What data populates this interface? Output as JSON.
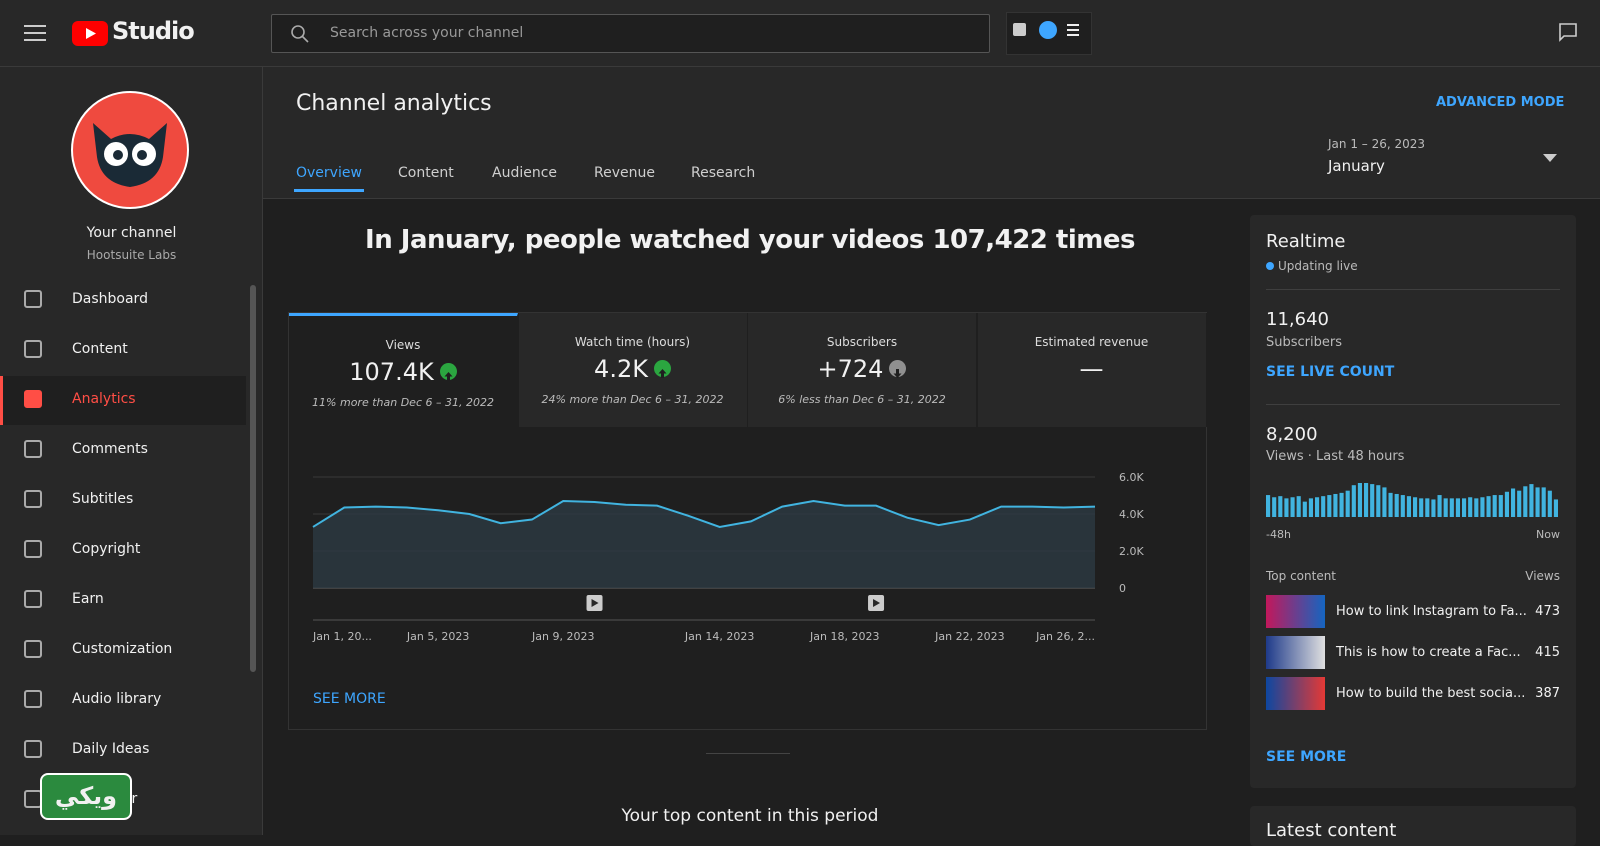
{
  "header": {
    "brand": "Studio",
    "search_placeholder": "Search across your channel"
  },
  "sidebar": {
    "channel_title": "Your channel",
    "channel_name": "Hootsuite Labs",
    "items": [
      "Dashboard",
      "Content",
      "Analytics",
      "Comments",
      "Subtitles",
      "Copyright",
      "Earn",
      "Customization",
      "Audio library",
      "Daily Ideas",
      "Inspector"
    ],
    "active": 2,
    "watermark": "ويكي"
  },
  "main": {
    "title": "Channel analytics",
    "advanced_mode": "ADVANCED MODE",
    "tabs": [
      "Overview",
      "Content",
      "Audience",
      "Revenue",
      "Research"
    ],
    "active_tab": 0,
    "date_range": {
      "range": "Jan 1 – 26, 2023",
      "label": "January"
    },
    "headline": "In January, people watched your videos 107,422 times",
    "metrics": [
      {
        "label": "Views",
        "value": "107.4K",
        "trend": "up",
        "note": "11% more than Dec 6 – 31, 2022"
      },
      {
        "label": "Watch time (hours)",
        "value": "4.2K",
        "trend": "up",
        "note": "24% more than Dec 6 – 31, 2022"
      },
      {
        "label": "Subscribers",
        "value": "+724",
        "trend": "down",
        "note": "6% less than Dec 6 – 31, 2022"
      },
      {
        "label": "Estimated revenue",
        "value": "—",
        "trend": null,
        "note": null
      }
    ],
    "see_more": "SEE MORE",
    "top_content_title": "Your top content in this period"
  },
  "chart_data": {
    "type": "line",
    "color": "#41b4e0",
    "categories": [
      "Jan 1, 20...",
      null,
      null,
      null,
      "Jan 5, 2023",
      null,
      null,
      null,
      "Jan 9, 2023",
      null,
      null,
      null,
      null,
      "Jan 14, 2023",
      null,
      null,
      null,
      "Jan 18, 2023",
      null,
      null,
      null,
      "Jan 22, 2023",
      null,
      null,
      null,
      "Jan 26, 2..."
    ],
    "values": [
      3300,
      4350,
      4400,
      4350,
      4200,
      4000,
      3500,
      3700,
      4700,
      4650,
      4500,
      4450,
      3900,
      3300,
      3600,
      4400,
      4700,
      4450,
      4450,
      3800,
      3400,
      3700,
      4400,
      4400,
      4350,
      4400
    ],
    "ylim": [
      0,
      6000
    ],
    "yticks": [
      0,
      {
        "value": 2000,
        "label": "2.0K"
      },
      {
        "value": 4000,
        "label": "4.0K"
      },
      {
        "value": 6000,
        "label": "6.0K"
      }
    ],
    "grid": true
  },
  "realtime": {
    "title": "Realtime",
    "status": "Updating live",
    "subscribers": {
      "value": "11,640",
      "label": "Subscribers"
    },
    "see_live_count": "SEE LIVE COUNT",
    "views": {
      "value": "8,200",
      "label": "Views · Last 48 hours"
    },
    "bars": {
      "values": [
        20,
        18,
        19,
        17,
        18,
        19,
        14,
        17,
        18,
        19,
        20,
        21,
        22,
        24,
        29,
        31,
        31,
        30,
        29,
        27,
        22,
        21,
        20,
        19,
        18,
        17,
        17,
        16,
        20,
        17,
        17,
        17,
        17,
        18,
        17,
        18,
        19,
        20,
        20,
        23,
        26,
        24,
        28,
        30,
        27,
        27,
        24,
        16
      ],
      "color": "#41b4e0"
    },
    "axis_start": "-48h",
    "axis_end": "Now",
    "top_content_label": "Top content",
    "views_label": "Views",
    "top_content": [
      {
        "title": "How to link Instagram to Fa...",
        "views": "473"
      },
      {
        "title": "This is how to create a Fac...",
        "views": "415"
      },
      {
        "title": "How to build the best socia...",
        "views": "387"
      }
    ],
    "see_more": "SEE MORE",
    "latest_title": "Latest content"
  }
}
